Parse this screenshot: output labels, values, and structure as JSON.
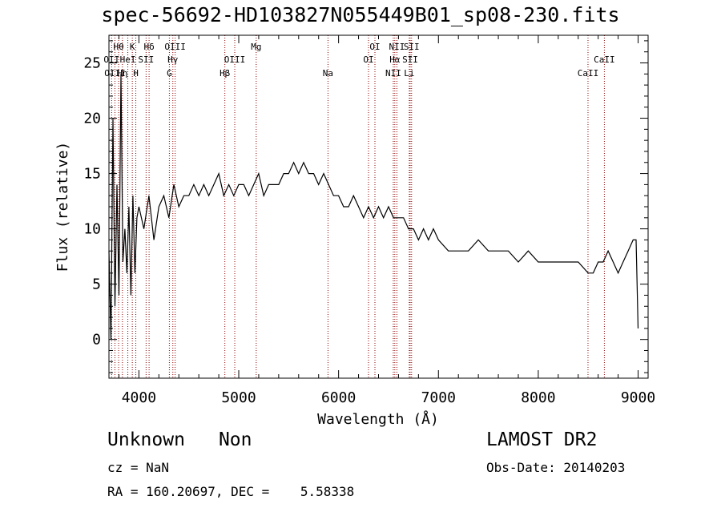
{
  "header": {
    "title": "spec-56692-HD103827N055449B01_sp08-230.fits"
  },
  "info": {
    "object_class": "Unknown",
    "subclass": "Non",
    "survey": "LAMOST DR2",
    "cz": "cz = NaN",
    "obs_date": "Obs-Date: 20140203",
    "radec": "RA = 160.20697, DEC =    5.58338"
  },
  "chart_data": {
    "type": "line",
    "title": "spec-56692-HD103827N055449B01_sp08-230.fits",
    "xlabel": "Wavelength (Å)",
    "ylabel": "Flux (relative)",
    "xlim": [
      3700,
      9100
    ],
    "ylim": [
      -3.5,
      27.5
    ],
    "xticks": [
      4000,
      5000,
      6000,
      7000,
      8000,
      9000
    ],
    "yticks": [
      0,
      5,
      10,
      15,
      20,
      25
    ],
    "grid": false,
    "line_color": "#000000",
    "marker_color": "#8b0000",
    "series": [
      {
        "x": [
          3700,
          3720,
          3740,
          3760,
          3780,
          3800,
          3820,
          3840,
          3860,
          3880,
          3900,
          3920,
          3940,
          3960,
          3980,
          4000,
          4050,
          4100,
          4150,
          4200,
          4250,
          4300,
          4350,
          4400,
          4450,
          4500,
          4550,
          4600,
          4650,
          4700,
          4750,
          4800,
          4850,
          4900,
          4950,
          5000,
          5050,
          5100,
          5150,
          5200,
          5250,
          5300,
          5350,
          5400,
          5450,
          5500,
          5550,
          5600,
          5650,
          5700,
          5750,
          5800,
          5850,
          5900,
          5950,
          6000,
          6050,
          6100,
          6150,
          6200,
          6250,
          6300,
          6350,
          6400,
          6450,
          6500,
          6550,
          6600,
          6650,
          6700,
          6750,
          6800,
          6850,
          6900,
          6950,
          7000,
          7100,
          7200,
          7300,
          7400,
          7500,
          7600,
          7700,
          7800,
          7900,
          8000,
          8100,
          8200,
          8300,
          8400,
          8500,
          8550,
          8600,
          8650,
          8700,
          8750,
          8800,
          8850,
          8900,
          8950,
          8980,
          9000
        ],
        "y": [
          8,
          0,
          20,
          3,
          14,
          4,
          24,
          7,
          10,
          6,
          12,
          4,
          13,
          6,
          11,
          12,
          10,
          13,
          9,
          12,
          13,
          11,
          14,
          12,
          13,
          13,
          14,
          13,
          14,
          13,
          14,
          15,
          13,
          14,
          13,
          14,
          14,
          13,
          14,
          15,
          13,
          14,
          14,
          14,
          15,
          15,
          16,
          15,
          16,
          15,
          15,
          14,
          15,
          14,
          13,
          13,
          12,
          12,
          13,
          12,
          11,
          12,
          11,
          12,
          11,
          12,
          11,
          11,
          11,
          10,
          10,
          9,
          10,
          9,
          10,
          9,
          8,
          8,
          8,
          9,
          8,
          8,
          8,
          7,
          8,
          7,
          7,
          7,
          7,
          7,
          6,
          6,
          7,
          7,
          8,
          7,
          6,
          7,
          8,
          9,
          9,
          1
        ]
      }
    ],
    "markers": [
      {
        "label": "OII",
        "x": 3727,
        "row": 2
      },
      {
        "label": "OIII",
        "x": 3760,
        "row": 3
      },
      {
        "label": "Hθ",
        "x": 3797,
        "row": 1
      },
      {
        "label": "Hη",
        "x": 3835,
        "row": 3
      },
      {
        "label": "HeI",
        "x": 3889,
        "row": 2
      },
      {
        "label": "K",
        "x": 3934,
        "row": 1
      },
      {
        "label": "H",
        "x": 3969,
        "row": 3
      },
      {
        "label": "SII",
        "x": 4072,
        "row": 2
      },
      {
        "label": "Hδ",
        "x": 4102,
        "row": 1
      },
      {
        "label": "G",
        "x": 4305,
        "row": 3
      },
      {
        "label": "Hγ",
        "x": 4340,
        "row": 2
      },
      {
        "label": "OIII",
        "x": 4363,
        "row": 1
      },
      {
        "label": "Hβ",
        "x": 4861,
        "row": 3
      },
      {
        "label": "OIII",
        "x": 4960,
        "row": 2
      },
      {
        "label": "Mg",
        "x": 5175,
        "row": 1
      },
      {
        "label": "Na",
        "x": 5894,
        "row": 3
      },
      {
        "label": "OI",
        "x": 6300,
        "row": 2
      },
      {
        "label": "OI",
        "x": 6364,
        "row": 1
      },
      {
        "label": "NII",
        "x": 6548,
        "row": 3
      },
      {
        "label": "Hα",
        "x": 6563,
        "row": 2
      },
      {
        "label": "NII",
        "x": 6584,
        "row": 1
      },
      {
        "label": "SII",
        "x": 6717,
        "row": 2
      },
      {
        "label": "SII",
        "x": 6731,
        "row": 1
      },
      {
        "label": "Li",
        "x": 6708,
        "row": 3
      },
      {
        "label": "CaII",
        "x": 8498,
        "row": 3
      },
      {
        "label": "CaII",
        "x": 8662,
        "row": 2
      }
    ]
  }
}
